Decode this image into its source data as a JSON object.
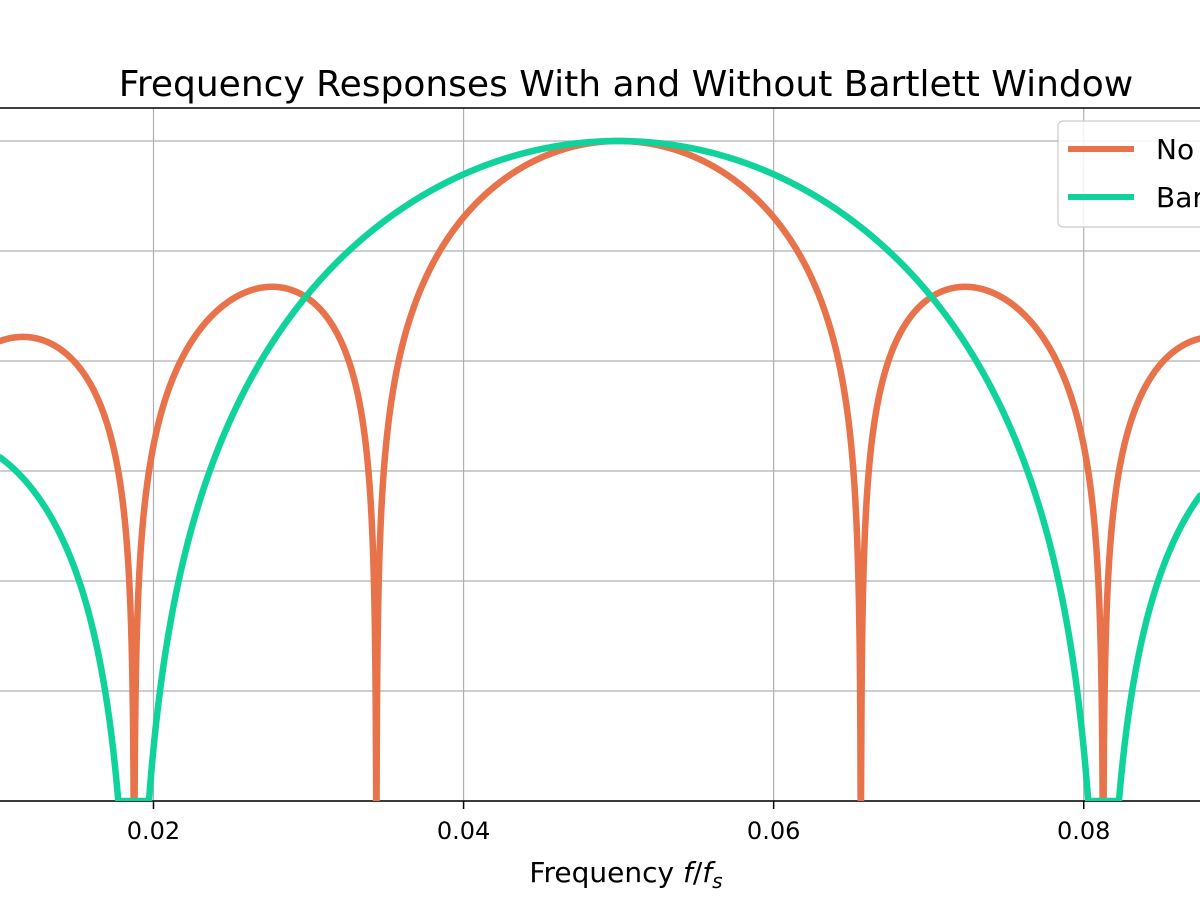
{
  "chart_data": {
    "type": "line",
    "title": "Frequency Responses With and Without Bartlett Window",
    "xlabel": "Frequency",
    "xlabel_math": {
      "f": "f",
      "slash": "/",
      "fs_base": "f",
      "fs_sub": "s"
    },
    "xlim": [
      0.0101,
      0.0875
    ],
    "ylim": [
      -60,
      3
    ],
    "x_ticks": [
      0.02,
      0.04,
      0.06,
      0.08
    ],
    "x_tick_labels": [
      "0.02",
      "0.04",
      "0.06",
      "0.08"
    ],
    "y_gridlines": [
      -60,
      -50,
      -40,
      -30,
      -20,
      -10,
      0
    ],
    "grid": true,
    "legend_position": "top-right",
    "series": [
      {
        "name": "No",
        "color": "#E8724A",
        "function": "dirichlet",
        "N": 64,
        "f0": 0.05,
        "floor_db": -60
      },
      {
        "name": "Bar",
        "color": "#0FD39A",
        "function": "bartlett",
        "N": 64,
        "f0": 0.05,
        "floor_db": -60
      }
    ]
  }
}
